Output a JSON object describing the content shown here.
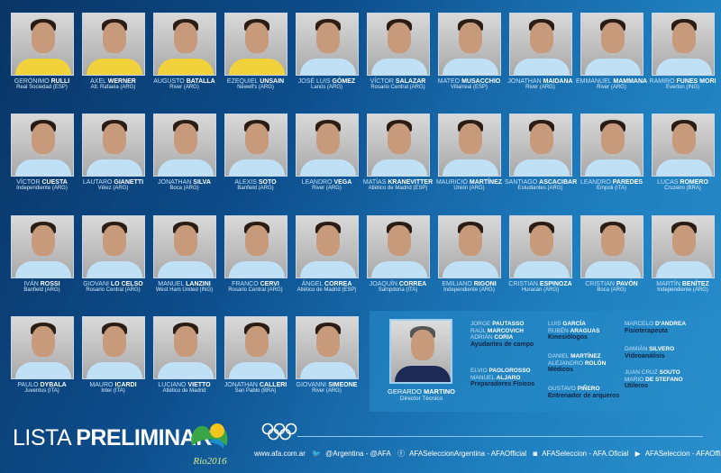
{
  "players": [
    [
      {
        "first": "GERÓNIMO",
        "last": "RULLI",
        "club": "Real Sociedad (ESP)",
        "gk": true
      },
      {
        "first": "AXEL",
        "last": "WERNER",
        "club": "Atl. Rafaela (ARG)",
        "gk": true
      },
      {
        "first": "AUGUSTO",
        "last": "BATALLA",
        "club": "River (ARG)",
        "gk": true
      },
      {
        "first": "EZEQUIEL",
        "last": "UNSAIN",
        "club": "Newell's (ARG)",
        "gk": true
      },
      {
        "first": "JOSÉ LUIS",
        "last": "GÓMEZ",
        "club": "Lanús (ARG)"
      },
      {
        "first": "VÍCTOR",
        "last": "SALAZAR",
        "club": "Rosario Central (ARG)"
      },
      {
        "first": "MATEO",
        "last": "MUSACCHIO",
        "club": "Villarreal (ESP)"
      },
      {
        "first": "JONATHAN",
        "last": "MAIDANA",
        "club": "River (ARG)"
      },
      {
        "first": "EMMANUEL",
        "last": "MAMMANA",
        "club": "River (ARG)"
      },
      {
        "first": "RAMIRO",
        "last": "FUNES MORI",
        "club": "Everton (ING)"
      }
    ],
    [
      {
        "first": "VÍCTOR",
        "last": "CUESTA",
        "club": "Independiente (ARG)"
      },
      {
        "first": "LAUTARO",
        "last": "GIANETTI",
        "club": "Vélez (ARG)"
      },
      {
        "first": "JONATHAN",
        "last": "SILVA",
        "club": "Boca (ARG)"
      },
      {
        "first": "ALEXIS",
        "last": "SOTO",
        "club": "Banfield (ARG)"
      },
      {
        "first": "LEANDRO",
        "last": "VEGA",
        "club": "River (ARG)"
      },
      {
        "first": "MATÍAS",
        "last": "KRANEVITTER",
        "club": "Atlético de Madrid (ESP)"
      },
      {
        "first": "MAURICIO",
        "last": "MARTÍNEZ",
        "club": "Unión (ARG)"
      },
      {
        "first": "SANTIAGO",
        "last": "ASCACIBAR",
        "club": "Estudiantes (ARG)"
      },
      {
        "first": "LEANDRO",
        "last": "PAREDES",
        "club": "Empoli (ITA)"
      },
      {
        "first": "LUCAS",
        "last": "ROMERO",
        "club": "Cruzeiro (BRA)"
      }
    ],
    [
      {
        "first": "IVÁN",
        "last": "ROSSI",
        "club": "Banfield (ARG)"
      },
      {
        "first": "GIOVANI",
        "last": "LO CELSO",
        "club": "Rosario Central (ARG)"
      },
      {
        "first": "MANUEL",
        "last": "LANZINI",
        "club": "West Ham United (ING)"
      },
      {
        "first": "FRANCO",
        "last": "CERVI",
        "club": "Rosario Central (ARG)"
      },
      {
        "first": "ÁNGEL",
        "last": "CORREA",
        "club": "Atlético de Madrid (ESP)"
      },
      {
        "first": "JOAQUÍN",
        "last": "CORREA",
        "club": "Sampdoria (ITA)"
      },
      {
        "first": "EMILIANO",
        "last": "RIGONI",
        "club": "Independiente (ARG)"
      },
      {
        "first": "CRISTIAN",
        "last": "ESPINOZA",
        "club": "Huracán (ARG)"
      },
      {
        "first": "CRISTIAN",
        "last": "PAVÓN",
        "club": "Boca (ARG)"
      },
      {
        "first": "MARTÍN",
        "last": "BENÍTEZ",
        "club": "Independiente (ARG)"
      }
    ],
    [
      {
        "first": "PAULO",
        "last": "DYBALA",
        "club": "Juventus (ITA)"
      },
      {
        "first": "MAURO",
        "last": "ICARDI",
        "club": "Inter (ITA)"
      },
      {
        "first": "LUCIANO",
        "last": "VIETTO",
        "club": "Atlético de Madrid"
      },
      {
        "first": "JONATHAN",
        "last": "CALLERI",
        "club": "San Pablo (BRA)"
      },
      {
        "first": "GIOVANNI",
        "last": "SIMEONE",
        "club": "River (ARG)"
      }
    ]
  ],
  "coach": {
    "first": "GERARDO",
    "last": "MARTINO",
    "role": "Director Técnico"
  },
  "staff": [
    {
      "names": [
        [
          "JORGE",
          "PAUTASSO"
        ],
        [
          "RAÚL",
          "MARCOVICH"
        ],
        [
          "ADRIÁN",
          "CORIA"
        ]
      ],
      "role": "Ayudantes de campo"
    },
    {
      "names": [
        [
          "ELVIO",
          "PAOLOROSSO"
        ],
        [
          "MANUEL",
          "ALJARO"
        ]
      ],
      "role": "Preparadores Físicos"
    },
    {
      "names": [
        [
          "LUIS",
          "GARCÍA"
        ],
        [
          "RUBÉN",
          "ARAGUAS"
        ]
      ],
      "role": "Kinesiólogos"
    },
    {
      "names": [
        [
          "DANIEL",
          "MARTÍNEZ"
        ],
        [
          "ALEJANDRO",
          "ROLÓN"
        ]
      ],
      "role": "Médicos"
    },
    {
      "names": [
        [
          "GUSTAVO",
          "PIÑERO"
        ]
      ],
      "role": "Entrenador de arqueros"
    },
    {
      "names": [
        [
          "MARCELO",
          "D'ANDREA"
        ]
      ],
      "role": "Fisioterapeuta"
    },
    {
      "names": [
        [
          "DAMIÁN",
          "SILVERO"
        ]
      ],
      "role": "Videoanálisis"
    },
    {
      "names": [
        [
          "JUAN CRUZ",
          "SOUTO"
        ],
        [
          "MARIO",
          "DE STEFANO"
        ]
      ],
      "role": "Utileros"
    }
  ],
  "footer": {
    "title_light": "LISTA",
    "title_bold": "PRELIMINAR",
    "rio_logo": "Rio2016",
    "social": [
      "www.afa.com.ar",
      "@Argentina - @AFA",
      "AFASeleccionArgentina - AFAOfficial",
      "AFASeleccion - AFA.Oficial",
      "AFASeleccion - AFAOfficial"
    ]
  },
  "colors": {
    "bg_dark": "#0a3566",
    "bg_light": "#2a8fcc",
    "gk_shirt": "#f1d23a",
    "home_shirt": "#bfe0f5"
  }
}
